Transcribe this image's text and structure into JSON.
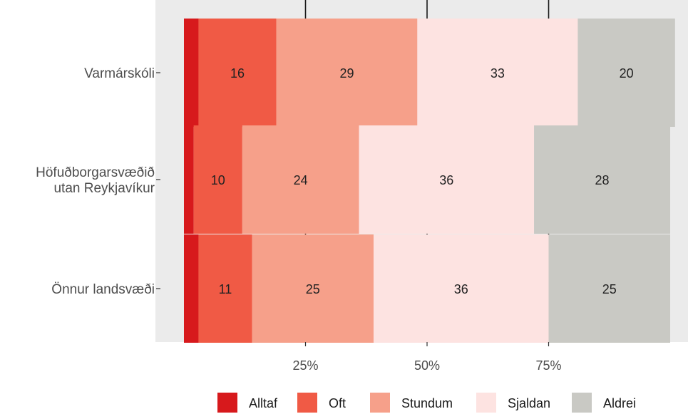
{
  "chart_data": {
    "type": "bar",
    "orientation": "horizontal",
    "stacked": true,
    "title": "",
    "xlabel": "",
    "ylabel": "",
    "xlim": [
      0,
      100
    ],
    "xticks": [
      25,
      50,
      75
    ],
    "xtick_labels": [
      "25%",
      "50%",
      "75%"
    ],
    "grid": true,
    "legend_position": "bottom",
    "categories": [
      "Varmárskóli",
      "Höfuðborgarsvæðið utan Reykjavíkur",
      "Önnur landsvæði"
    ],
    "category_lines": [
      [
        "Varmárskóli"
      ],
      [
        "Höfuðborgarsvæðið",
        "utan Reykjavíkur"
      ],
      [
        "Önnur landsvæði"
      ]
    ],
    "series": [
      {
        "name": "Alltaf",
        "color": "#d7191c",
        "values": [
          3,
          2,
          3
        ],
        "labels": [
          "",
          "",
          ""
        ]
      },
      {
        "name": "Oft",
        "color": "#f05a45",
        "values": [
          16,
          10,
          11
        ],
        "labels": [
          "16",
          "10",
          "11"
        ]
      },
      {
        "name": "Stundum",
        "color": "#f6a08a",
        "values": [
          29,
          24,
          25
        ],
        "labels": [
          "29",
          "24",
          "25"
        ]
      },
      {
        "name": "Sjaldan",
        "color": "#fde3e1",
        "values": [
          33,
          36,
          36
        ],
        "labels": [
          "33",
          "36",
          "36"
        ]
      },
      {
        "name": "Aldrei",
        "color": "#c9c9c4",
        "values": [
          20,
          28,
          25
        ],
        "labels": [
          "20",
          "28",
          "25"
        ]
      }
    ],
    "colors": {
      "panel_background": "#ebebeb",
      "grid_line": "#1a1a1a"
    }
  }
}
